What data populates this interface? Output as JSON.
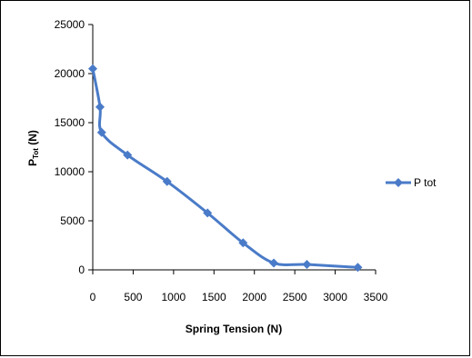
{
  "chart_data": {
    "type": "line",
    "xlabel": "Spring Tension (N)",
    "ylabel": {
      "main": "P",
      "sub": "Tot",
      "unit": " (N)"
    },
    "xlim": [
      0,
      3500
    ],
    "ylim": [
      0,
      25000
    ],
    "x_ticks": [
      0,
      500,
      1000,
      1500,
      2000,
      2500,
      3000,
      3500
    ],
    "y_ticks": [
      0,
      5000,
      10000,
      15000,
      20000,
      25000
    ],
    "grid": false,
    "legend_position": "right",
    "series": [
      {
        "name": "P tot",
        "color": "#4a7bc8",
        "marker": "diamond",
        "x": [
          0,
          90,
          110,
          430,
          920,
          1420,
          1860,
          2240,
          2650,
          3280
        ],
        "y": [
          20500,
          16600,
          14000,
          11700,
          9000,
          5800,
          2750,
          700,
          550,
          250
        ]
      }
    ]
  }
}
